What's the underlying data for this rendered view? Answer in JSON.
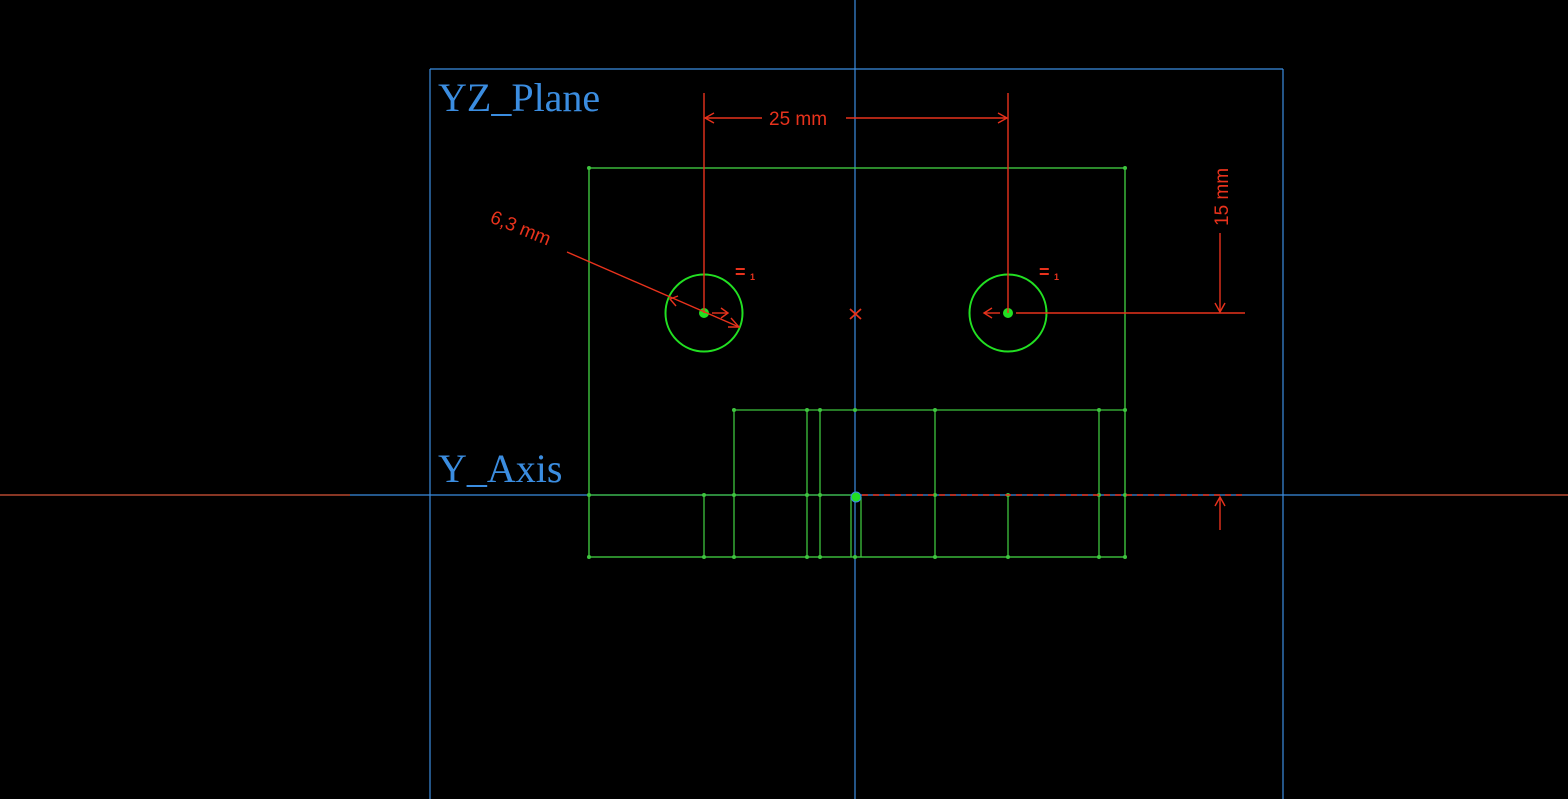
{
  "view": {
    "background": "#000000",
    "planes": {
      "yz_plane": "YZ_Plane",
      "y_axis": "Y_Axis"
    },
    "colors": {
      "reference": "#3b8de0",
      "geometry": "#3ec43e",
      "circle": "#22e022",
      "dimension": "#e8321c",
      "h_axis": "#d9573a"
    },
    "dimensions": {
      "spacing": "25 mm",
      "height": "15 mm",
      "radius": "6,3 mm"
    },
    "constraints": {
      "equal_left": "=",
      "equal_left_index": "1",
      "equal_right": "=",
      "equal_right_index": "1"
    }
  }
}
